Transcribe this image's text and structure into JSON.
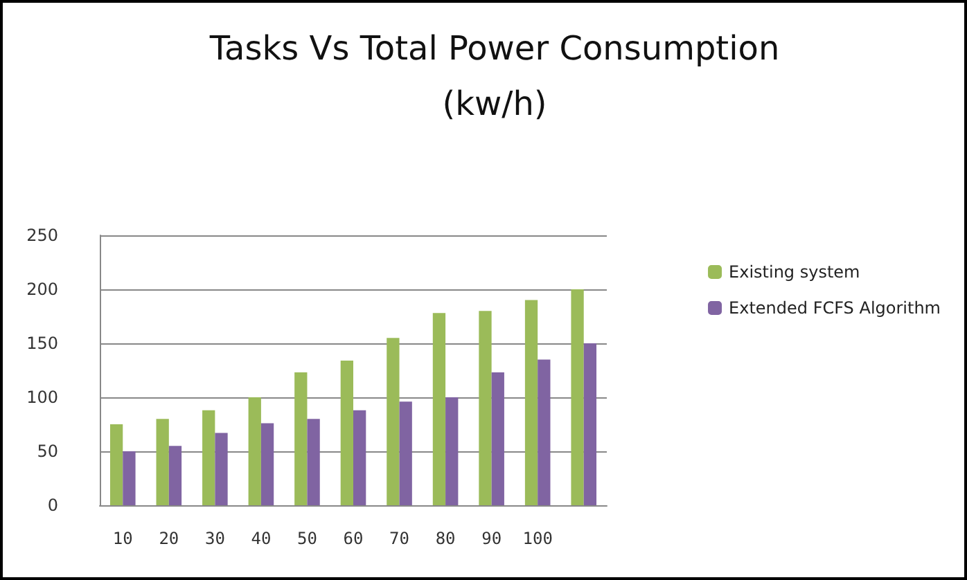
{
  "chart_data": {
    "type": "bar",
    "title": "Tasks Vs Total Power Consumption\n(kw/h)",
    "categories": [
      "10",
      "20",
      "30",
      "40",
      "50",
      "60",
      "70",
      "80",
      "90",
      "100",
      null
    ],
    "series": [
      {
        "name": "Existing system",
        "color": "#9bbb59",
        "values": [
          75,
          80,
          88,
          100,
          123,
          134,
          155,
          178,
          180,
          190,
          200
        ]
      },
      {
        "name": "Extended FCFS Algorithm",
        "color": "#8064a2",
        "values": [
          50,
          55,
          67,
          76,
          80,
          88,
          96,
          100,
          123,
          135,
          150
        ]
      }
    ],
    "ylim": [
      0,
      250
    ],
    "yticks": [
      0,
      50,
      100,
      150,
      200,
      250
    ],
    "grid": "y",
    "legend": "right"
  }
}
